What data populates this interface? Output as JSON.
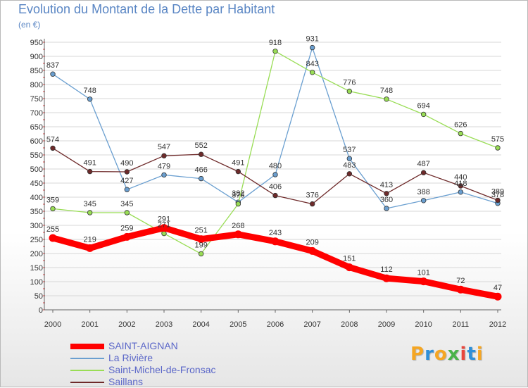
{
  "title": "Evolution du Montant de la Dette par Habitant",
  "subtitle": "(en €)",
  "logo": {
    "text": "Proxiti",
    "colors": [
      "#f5a623",
      "#2e8fd8",
      "#f5a623",
      "#49b349",
      "#e8453c",
      "#2e8fd8",
      "#f5a623"
    ]
  },
  "chart_data": {
    "type": "line",
    "x": [
      "2000",
      "2001",
      "2002",
      "2003",
      "2004",
      "2005",
      "2006",
      "2007",
      "2008",
      "2009",
      "2010",
      "2011",
      "2012"
    ],
    "y_ticks": [
      0,
      50,
      100,
      150,
      200,
      250,
      300,
      350,
      400,
      450,
      500,
      550,
      600,
      650,
      700,
      750,
      800,
      850,
      900,
      950
    ],
    "ylim": [
      0,
      950
    ],
    "grid": "horizontal",
    "legend_position": "bottom-left",
    "series": [
      {
        "name": "SAINT-AIGNAN",
        "color": "#ff0000",
        "values": [
          255,
          219,
          259,
          291,
          251,
          268,
          243,
          209,
          151,
          112,
          101,
          72,
          47
        ],
        "labels": [
          "255",
          "219",
          "259",
          "291",
          "251",
          "268",
          "243",
          "209",
          "151",
          "112",
          "101",
          "72",
          "47"
        ]
      },
      {
        "name": "La Rivière",
        "color": "#6a9fd0",
        "values": [
          837,
          748,
          427,
          479,
          466,
          382,
          480,
          931,
          537,
          360,
          388,
          418,
          378
        ],
        "labels": [
          "837",
          "748",
          "427",
          "479",
          "466",
          "382",
          "480",
          "931",
          "537",
          "360",
          "388",
          "418",
          "378"
        ]
      },
      {
        "name": "Saint-Michel-de-Fronsac",
        "color": "#99dd55",
        "values": [
          359,
          345,
          345,
          271,
          199,
          376,
          918,
          843,
          776,
          748,
          694,
          626,
          575
        ],
        "labels": [
          "359",
          "345",
          "345",
          "271",
          "199",
          "376",
          "918",
          "843",
          "776",
          "748",
          "694",
          "626",
          "575"
        ]
      },
      {
        "name": "Saillans",
        "color": "#6e2a2a",
        "values": [
          574,
          491,
          490,
          547,
          552,
          491,
          406,
          376,
          483,
          413,
          487,
          440,
          389
        ],
        "labels": [
          "574",
          "491",
          "490",
          "547",
          "552",
          "491",
          "406",
          "376",
          "483",
          "413",
          "487",
          "440",
          "389"
        ]
      }
    ]
  }
}
